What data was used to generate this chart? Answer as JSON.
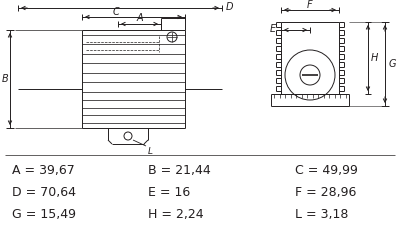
{
  "bg_color": "#ffffff",
  "text_color": "#231f20",
  "line_color": "#231f20",
  "measurements": [
    {
      "label": "A",
      "value": "39,67"
    },
    {
      "label": "B",
      "value": "21,44"
    },
    {
      "label": "C",
      "value": "49,99"
    },
    {
      "label": "D",
      "value": "70,64"
    },
    {
      "label": "E",
      "value": "16"
    },
    {
      "label": "F",
      "value": "28,96"
    },
    {
      "label": "G",
      "value": "15,49"
    },
    {
      "label": "H",
      "value": "2,24"
    },
    {
      "label": "L",
      "value": "3,18"
    }
  ],
  "figsize": [
    4.0,
    2.49
  ],
  "dpi": 100
}
